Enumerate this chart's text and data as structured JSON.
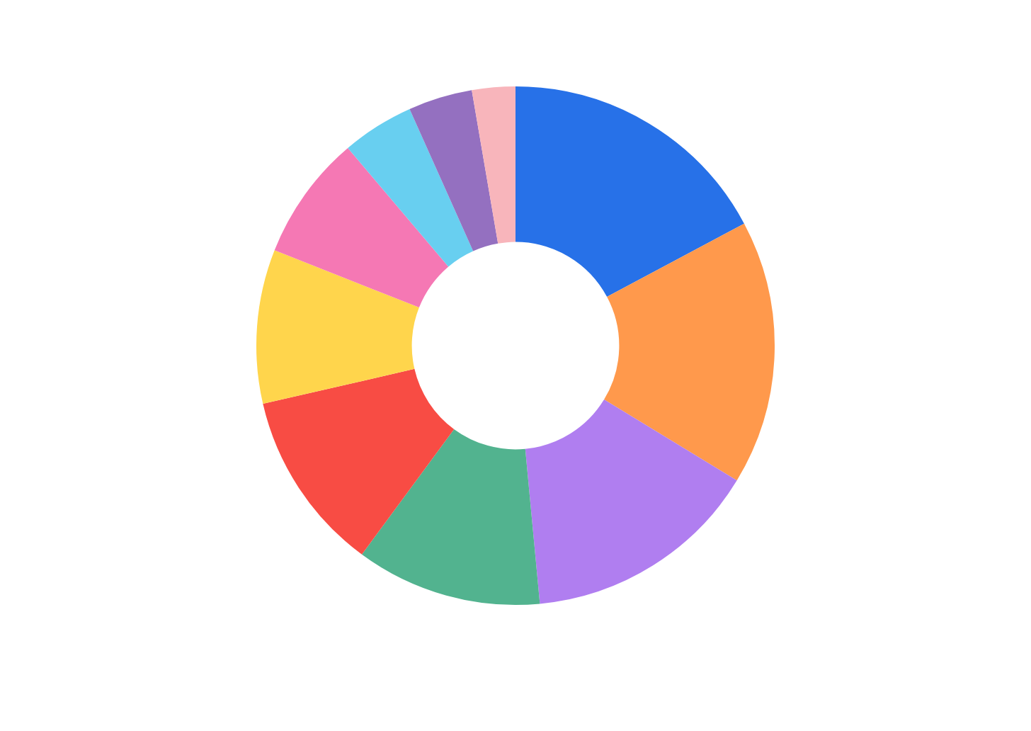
{
  "chart_data": {
    "type": "donut",
    "categories": [
      null,
      null,
      null,
      null,
      null,
      null,
      null,
      null,
      null,
      null
    ],
    "values": [
      17.2,
      16.5,
      14.8,
      11.6,
      11.3,
      9.6,
      7.8,
      4.5,
      4.0,
      2.7
    ],
    "colors": [
      "#2771e8",
      "#ff994c",
      "#b07ef0",
      "#52b38f",
      "#f84c44",
      "#ffd54c",
      "#f578b4",
      "#68cff0",
      "#9470c0",
      "#f8b5bb"
    ],
    "legend": false
  }
}
